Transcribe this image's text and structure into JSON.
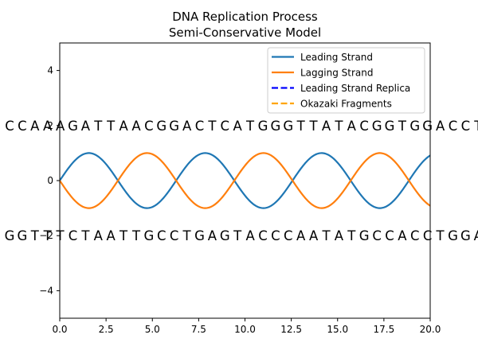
{
  "chart_data": {
    "type": "line",
    "title": "DNA Replication Process",
    "subtitle": "Semi-Conservative Model",
    "xlabel": "",
    "ylabel": "",
    "xlim": [
      0,
      20
    ],
    "ylim": [
      -5,
      5
    ],
    "xticks": [
      0,
      2.5,
      5,
      7.5,
      10,
      12.5,
      15,
      17.5,
      20
    ],
    "xtick_labels": [
      "0.0",
      "2.5",
      "5.0",
      "7.5",
      "10.0",
      "12.5",
      "15.0",
      "17.5",
      "20.0"
    ],
    "yticks": [
      -4,
      -2,
      0,
      2,
      4
    ],
    "ytick_labels": [
      "−4",
      "−2",
      "0",
      "2",
      "4"
    ],
    "grid": false,
    "legend_position": "upper right",
    "series": [
      {
        "name": "Leading Strand",
        "function": "sin(x)",
        "x_range": [
          0,
          20
        ],
        "color": "#1f77b4",
        "style": "solid"
      },
      {
        "name": "Lagging Strand",
        "function": "-sin(x)",
        "x_range": [
          0,
          20
        ],
        "color": "#ff7f0e",
        "style": "solid"
      },
      {
        "name": "Leading Strand Replica",
        "color": "#0000ff",
        "style": "dashed"
      },
      {
        "name": "Okazaki Fragments",
        "color": "#ffa500",
        "style": "dashed"
      }
    ],
    "sequences": {
      "top": {
        "y": 2,
        "bases": "CCAAAGATTAACGGACTCATGGGTTATACGGTGGACCT"
      },
      "bottom": {
        "y": -2,
        "bases": "GGTTTCTAATTGCCTGAGTACCCAATATGCCACCTGGA"
      }
    }
  }
}
